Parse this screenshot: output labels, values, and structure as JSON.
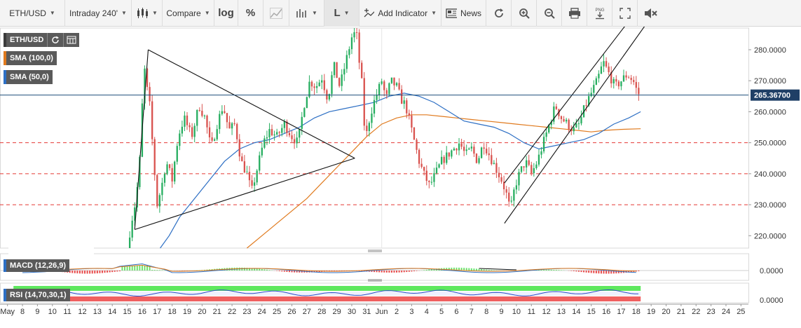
{
  "toolbar": {
    "symbol": "ETH/USD",
    "interval": "Intraday 240'",
    "compare": "Compare",
    "log": "log",
    "percent": "%",
    "line_type": "L",
    "add_indicator": "Add Indicator",
    "news": "News",
    "icons": [
      "candlestick-icon",
      "draw-icon",
      "bar-chart-icon",
      "line-type-icon",
      "add-indicator-icon",
      "news-icon",
      "refresh-icon",
      "zoom-in-icon",
      "zoom-out-icon",
      "print-icon",
      "png-download-icon",
      "fullscreen-icon",
      "mute-icon"
    ]
  },
  "legend": {
    "main": "ETH/USD",
    "sma100": "SMA (100,0)",
    "sma50": "SMA (50,0)",
    "macd": "MACD (12,26,9)",
    "rsi": "RSI (14,70,30,1)"
  },
  "colors": {
    "up": "#27ae60",
    "down": "#d9534f",
    "sma50": "#2d6fc4",
    "sma100": "#e07a1e",
    "price_line": "#1f4e79",
    "dashed": "#e53935"
  },
  "chart_data": {
    "type": "candlestick",
    "symbol": "ETH/USD",
    "current_price": "265.36700",
    "y_ticks": [
      "280.0000",
      "270.0000",
      "260.0000",
      "250.0000",
      "240.0000",
      "230.0000",
      "220.0000"
    ],
    "ylim": [
      216,
      287
    ],
    "x_ticks": [
      "May",
      "8",
      "9",
      "10",
      "11",
      "12",
      "13",
      "14",
      "15",
      "16",
      "17",
      "18",
      "19",
      "20",
      "21",
      "22",
      "23",
      "24",
      "25",
      "26",
      "27",
      "28",
      "29",
      "30",
      "31",
      "Jun",
      "2",
      "3",
      "4",
      "5",
      "6",
      "7",
      "8",
      "9",
      "10",
      "11",
      "12",
      "13",
      "14",
      "15",
      "16",
      "17",
      "18",
      "19",
      "20",
      "21",
      "22",
      "23",
      "24",
      "25"
    ],
    "x_tick_days": [
      7,
      8,
      9,
      10,
      11,
      12,
      13,
      14,
      15,
      16,
      17,
      18,
      19,
      20,
      21,
      22,
      23,
      24,
      25,
      26,
      27,
      28,
      29,
      30,
      31,
      32,
      33,
      34,
      35,
      36,
      37,
      38,
      39,
      40,
      41,
      42,
      43,
      44,
      45,
      46,
      47,
      48,
      49,
      50,
      51,
      52,
      53,
      54,
      55,
      56
    ],
    "horizontal_levels": [
      250,
      240,
      230
    ],
    "price_path": [
      [
        15,
        216
      ],
      [
        15.3,
        225
      ],
      [
        15.6,
        232
      ],
      [
        15.9,
        248
      ],
      [
        16.1,
        276
      ],
      [
        16.3,
        268
      ],
      [
        16.5,
        262
      ],
      [
        16.8,
        242
      ],
      [
        17,
        230
      ],
      [
        17.3,
        236
      ],
      [
        17.6,
        244
      ],
      [
        18,
        238
      ],
      [
        18.4,
        252
      ],
      [
        18.8,
        258
      ],
      [
        19.3,
        252
      ],
      [
        19.8,
        262
      ],
      [
        20.2,
        258
      ],
      [
        20.6,
        248
      ],
      [
        21,
        256
      ],
      [
        21.4,
        262
      ],
      [
        21.8,
        254
      ],
      [
        22.2,
        256
      ],
      [
        22.6,
        244
      ],
      [
        23,
        240
      ],
      [
        23.3,
        234
      ],
      [
        23.7,
        242
      ],
      [
        24.1,
        250
      ],
      [
        24.5,
        254
      ],
      [
        25,
        252
      ],
      [
        25.5,
        256
      ],
      [
        26,
        252
      ],
      [
        26.4,
        250
      ],
      [
        26.8,
        262
      ],
      [
        27.2,
        270
      ],
      [
        27.6,
        268
      ],
      [
        28,
        271
      ],
      [
        28.4,
        264
      ],
      [
        28.8,
        275
      ],
      [
        29.2,
        268
      ],
      [
        29.6,
        276
      ],
      [
        30,
        284
      ],
      [
        30.3,
        286
      ],
      [
        30.5,
        276
      ],
      [
        30.7,
        268
      ],
      [
        30.9,
        250
      ],
      [
        31.1,
        256
      ],
      [
        31.4,
        262
      ],
      [
        31.7,
        266
      ],
      [
        32,
        270
      ],
      [
        32.3,
        264
      ],
      [
        32.6,
        270
      ],
      [
        33,
        268
      ],
      [
        33.3,
        264
      ],
      [
        33.6,
        262
      ],
      [
        33.9,
        256
      ],
      [
        34.2,
        250
      ],
      [
        34.5,
        244
      ],
      [
        34.8,
        240
      ],
      [
        35.2,
        236
      ],
      [
        35.6,
        240
      ],
      [
        36,
        244
      ],
      [
        36.4,
        246
      ],
      [
        36.8,
        248
      ],
      [
        37.2,
        250
      ],
      [
        37.6,
        246
      ],
      [
        38,
        248
      ],
      [
        38.4,
        244
      ],
      [
        38.8,
        250
      ],
      [
        39.2,
        246
      ],
      [
        39.6,
        242
      ],
      [
        40,
        238
      ],
      [
        40.3,
        234
      ],
      [
        40.6,
        228
      ],
      [
        40.9,
        236
      ],
      [
        41.2,
        240
      ],
      [
        41.6,
        244
      ],
      [
        42,
        240
      ],
      [
        42.4,
        244
      ],
      [
        42.8,
        250
      ],
      [
        43.2,
        256
      ],
      [
        43.6,
        262
      ],
      [
        44,
        258
      ],
      [
        44.4,
        256
      ],
      [
        44.8,
        254
      ],
      [
        45.2,
        256
      ],
      [
        45.6,
        262
      ],
      [
        46,
        266
      ],
      [
        46.4,
        270
      ],
      [
        46.8,
        276
      ],
      [
        47.2,
        272
      ],
      [
        47.6,
        268
      ],
      [
        48,
        270
      ],
      [
        48.4,
        272
      ],
      [
        48.8,
        270
      ],
      [
        49.1,
        266
      ],
      [
        49.3,
        265.4
      ]
    ],
    "sma50_path": [
      [
        17.2,
        216
      ],
      [
        17.8,
        220
      ],
      [
        18.5,
        226
      ],
      [
        19.5,
        232
      ],
      [
        20.5,
        238
      ],
      [
        21.5,
        244
      ],
      [
        22.5,
        248
      ],
      [
        23.5,
        250
      ],
      [
        24.5,
        251
      ],
      [
        25.5,
        253
      ],
      [
        26.5,
        255
      ],
      [
        27.5,
        258
      ],
      [
        28.5,
        260
      ],
      [
        29.5,
        261
      ],
      [
        30.5,
        262
      ],
      [
        31.5,
        263
      ],
      [
        32.5,
        265
      ],
      [
        33.5,
        266
      ],
      [
        34.5,
        265
      ],
      [
        35.5,
        263
      ],
      [
        36.5,
        260
      ],
      [
        37.5,
        257
      ],
      [
        38.5,
        256
      ],
      [
        39.5,
        255
      ],
      [
        40.5,
        253
      ],
      [
        41.5,
        250
      ],
      [
        42.5,
        248
      ],
      [
        43.5,
        249
      ],
      [
        44.5,
        250
      ],
      [
        45.5,
        251
      ],
      [
        46.5,
        253
      ],
      [
        47.5,
        256
      ],
      [
        48.5,
        258
      ],
      [
        49.3,
        260
      ]
    ],
    "sma100_path": [
      [
        23,
        216
      ],
      [
        24,
        220
      ],
      [
        25,
        224
      ],
      [
        26,
        228
      ],
      [
        27,
        232
      ],
      [
        28,
        237
      ],
      [
        29,
        242
      ],
      [
        30,
        247
      ],
      [
        31,
        252
      ],
      [
        32,
        256
      ],
      [
        33,
        258
      ],
      [
        34,
        259
      ],
      [
        35,
        259
      ],
      [
        36,
        258.5
      ],
      [
        37,
        258
      ],
      [
        38,
        257.5
      ],
      [
        39,
        257
      ],
      [
        40,
        256.5
      ],
      [
        41,
        256
      ],
      [
        42,
        255.5
      ],
      [
        43,
        255
      ],
      [
        44,
        254.5
      ],
      [
        45,
        254
      ],
      [
        46,
        253.5
      ],
      [
        47,
        254
      ],
      [
        48,
        254.3
      ],
      [
        49.3,
        254.5
      ]
    ],
    "trendlines": [
      [
        [
          15.5,
          222
        ],
        [
          16.4,
          280
        ]
      ],
      [
        [
          16.4,
          280
        ],
        [
          30.2,
          245
        ]
      ],
      [
        [
          15.5,
          222
        ],
        [
          30.2,
          245
        ]
      ],
      [
        [
          40.2,
          237
        ],
        [
          52.6,
          315
        ]
      ],
      [
        [
          40.2,
          224
        ],
        [
          53.6,
          315
        ]
      ]
    ],
    "macd_ylabel": "0.0000",
    "rsi_ylabel": "0.0000"
  }
}
